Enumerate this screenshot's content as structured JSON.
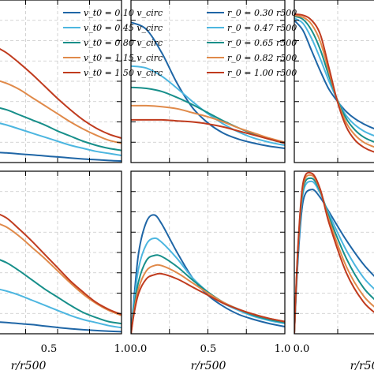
{
  "chart_data": {
    "type": "line",
    "xlabel": "r/r500",
    "xlim": [
      0.0,
      1.0
    ],
    "xticks": [
      "0.0",
      "0.5",
      "1.0"
    ],
    "grid": true,
    "legends": [
      {
        "placement": "top-right of left column",
        "entries": [
          {
            "label": "v_t0 = 0.10 v_circ",
            "color": "#1f66a6"
          },
          {
            "label": "v_t0 = 0.45 v_circ",
            "color": "#4cb6e0"
          },
          {
            "label": "v_t0 = 0.80 v_circ",
            "color": "#178f8a"
          },
          {
            "label": "v_t0 = 1.15 v_circ",
            "color": "#e08a4a"
          },
          {
            "label": "v_t0 = 1.50 v_circ",
            "color": "#c03b1e"
          }
        ]
      },
      {
        "placement": "top-right of middle column",
        "entries": [
          {
            "label": "r_0 = 0.30 r500",
            "color": "#1f66a6"
          },
          {
            "label": "r_0 = 0.47 r500",
            "color": "#4cb6e0"
          },
          {
            "label": "r_0 = 0.65 r500",
            "color": "#178f8a"
          },
          {
            "label": "r_0 = 0.82 r500",
            "color": "#e08a4a"
          },
          {
            "label": "r_0 = 1.00 r500",
            "color": "#c03b1e"
          }
        ]
      }
    ],
    "panels": [
      {
        "position": "top-left",
        "x": [
          0.0,
          0.1,
          0.2,
          0.3,
          0.4,
          0.5,
          0.6,
          0.7,
          0.8,
          0.9,
          1.0
        ],
        "series": [
          {
            "color": "#1f66a6",
            "values": [
              0.1,
              0.095,
              0.085,
              0.075,
              0.065,
              0.055,
              0.045,
              0.035,
              0.028,
              0.02,
              0.015
            ]
          },
          {
            "color": "#4cb6e0",
            "values": [
              0.4,
              0.37,
              0.33,
              0.29,
              0.25,
              0.21,
              0.17,
              0.14,
              0.11,
              0.09,
              0.07
            ]
          },
          {
            "color": "#178f8a",
            "values": [
              0.55,
              0.52,
              0.47,
              0.42,
              0.37,
              0.31,
              0.26,
              0.21,
              0.17,
              0.14,
              0.12
            ]
          },
          {
            "color": "#e08a4a",
            "values": [
              0.82,
              0.78,
              0.72,
              0.64,
              0.56,
              0.48,
              0.4,
              0.33,
              0.27,
              0.22,
              0.19
            ]
          },
          {
            "color": "#c03b1e",
            "values": [
              1.15,
              1.08,
              0.98,
              0.87,
              0.75,
              0.63,
              0.52,
              0.42,
              0.34,
              0.28,
              0.24
            ]
          }
        ]
      },
      {
        "position": "top-middle",
        "x": [
          0.0,
          0.1,
          0.2,
          0.3,
          0.4,
          0.5,
          0.6,
          0.7,
          0.8,
          0.9,
          1.0
        ],
        "series": [
          {
            "color": "#1f66a6",
            "values": [
              1.38,
              1.31,
              1.08,
              0.78,
              0.54,
              0.39,
              0.29,
              0.23,
              0.19,
              0.16,
              0.14
            ]
          },
          {
            "color": "#4cb6e0",
            "values": [
              0.95,
              0.93,
              0.85,
              0.73,
              0.6,
              0.48,
              0.38,
              0.3,
              0.24,
              0.2,
              0.17
            ]
          },
          {
            "color": "#178f8a",
            "values": [
              0.74,
              0.73,
              0.7,
              0.64,
              0.57,
              0.49,
              0.41,
              0.34,
              0.28,
              0.23,
              0.19
            ]
          },
          {
            "color": "#e08a4a",
            "values": [
              0.56,
              0.56,
              0.55,
              0.53,
              0.49,
              0.45,
              0.4,
              0.34,
              0.29,
              0.24,
              0.2
            ]
          },
          {
            "color": "#c03b1e",
            "values": [
              0.42,
              0.42,
              0.42,
              0.41,
              0.4,
              0.38,
              0.35,
              0.31,
              0.27,
              0.23,
              0.19
            ]
          }
        ]
      },
      {
        "position": "top-right",
        "x": [
          0.0,
          0.05,
          0.1,
          0.15,
          0.2,
          0.25,
          0.3,
          0.35,
          0.4,
          0.45,
          0.5
        ],
        "series": [
          {
            "color": "#1f66a6",
            "values": [
              1.4,
              1.3,
              1.1,
              0.9,
              0.72,
              0.6,
              0.5,
              0.43,
              0.38,
              0.34,
              0.31
            ]
          },
          {
            "color": "#4cb6e0",
            "values": [
              1.42,
              1.37,
              1.22,
              1.02,
              0.8,
              0.61,
              0.46,
              0.37,
              0.31,
              0.27,
              0.24
            ]
          },
          {
            "color": "#178f8a",
            "values": [
              1.44,
              1.41,
              1.3,
              1.11,
              0.85,
              0.61,
              0.43,
              0.32,
              0.25,
              0.21,
              0.18
            ]
          },
          {
            "color": "#e08a4a",
            "values": [
              1.45,
              1.43,
              1.36,
              1.19,
              0.89,
              0.6,
              0.39,
              0.27,
              0.2,
              0.16,
              0.13
            ]
          },
          {
            "color": "#c03b1e",
            "values": [
              1.46,
              1.45,
              1.4,
              1.26,
              0.93,
              0.59,
              0.35,
              0.22,
              0.15,
              0.11,
              0.09
            ]
          }
        ]
      },
      {
        "position": "bottom-left",
        "x": [
          0.0,
          0.1,
          0.2,
          0.3,
          0.4,
          0.5,
          0.6,
          0.7,
          0.8,
          0.9,
          1.0
        ],
        "series": [
          {
            "color": "#1f66a6",
            "values": [
              0.12,
              0.11,
              0.1,
              0.09,
              0.075,
              0.062,
              0.05,
              0.04,
              0.032,
              0.025,
              0.02
            ]
          },
          {
            "color": "#4cb6e0",
            "values": [
              0.45,
              0.42,
              0.38,
              0.33,
              0.28,
              0.23,
              0.18,
              0.14,
              0.11,
              0.08,
              0.06
            ]
          },
          {
            "color": "#178f8a",
            "values": [
              0.75,
              0.7,
              0.62,
              0.53,
              0.44,
              0.36,
              0.28,
              0.21,
              0.16,
              0.12,
              0.1
            ]
          },
          {
            "color": "#e08a4a",
            "values": [
              1.1,
              1.05,
              0.96,
              0.85,
              0.74,
              0.62,
              0.5,
              0.39,
              0.3,
              0.23,
              0.18
            ]
          },
          {
            "color": "#c03b1e",
            "values": [
              1.2,
              1.14,
              1.03,
              0.91,
              0.78,
              0.65,
              0.52,
              0.41,
              0.31,
              0.24,
              0.19
            ]
          }
        ]
      },
      {
        "position": "bottom-middle",
        "x": [
          0.0,
          0.02,
          0.05,
          0.1,
          0.15,
          0.2,
          0.3,
          0.4,
          0.5,
          0.6,
          0.7,
          0.8,
          0.9,
          1.0
        ],
        "series": [
          {
            "color": "#1f66a6",
            "values": [
              0.0,
              0.35,
              0.8,
              1.1,
              1.17,
              1.08,
              0.8,
              0.55,
              0.38,
              0.27,
              0.19,
              0.14,
              0.1,
              0.07
            ]
          },
          {
            "color": "#4cb6e0",
            "values": [
              0.0,
              0.3,
              0.65,
              0.88,
              0.94,
              0.9,
              0.74,
              0.55,
              0.41,
              0.3,
              0.23,
              0.17,
              0.13,
              0.1
            ]
          },
          {
            "color": "#178f8a",
            "values": [
              0.0,
              0.25,
              0.52,
              0.72,
              0.77,
              0.76,
              0.66,
              0.53,
              0.41,
              0.31,
              0.24,
              0.18,
              0.14,
              0.11
            ]
          },
          {
            "color": "#e08a4a",
            "values": [
              0.0,
              0.22,
              0.45,
              0.62,
              0.67,
              0.67,
              0.6,
              0.5,
              0.4,
              0.31,
              0.24,
              0.19,
              0.15,
              0.12
            ]
          },
          {
            "color": "#c03b1e",
            "values": [
              0.0,
              0.2,
              0.4,
              0.54,
              0.58,
              0.59,
              0.54,
              0.46,
              0.38,
              0.3,
              0.24,
              0.19,
              0.15,
              0.12
            ]
          }
        ]
      },
      {
        "position": "bottom-right",
        "x": [
          0.0,
          0.02,
          0.05,
          0.1,
          0.15,
          0.2,
          0.3,
          0.4,
          0.5
        ],
        "series": [
          {
            "color": "#1f66a6",
            "values": [
              0.0,
              0.7,
              1.3,
              1.42,
              1.34,
              1.2,
              0.92,
              0.68,
              0.5
            ]
          },
          {
            "color": "#4cb6e0",
            "values": [
              0.0,
              0.75,
              1.38,
              1.5,
              1.38,
              1.18,
              0.82,
              0.55,
              0.38
            ]
          },
          {
            "color": "#178f8a",
            "values": [
              0.0,
              0.78,
              1.42,
              1.53,
              1.4,
              1.15,
              0.74,
              0.45,
              0.28
            ]
          },
          {
            "color": "#e08a4a",
            "values": [
              0.0,
              0.8,
              1.45,
              1.56,
              1.41,
              1.12,
              0.66,
              0.37,
              0.21
            ]
          },
          {
            "color": "#c03b1e",
            "values": [
              0.0,
              0.82,
              1.48,
              1.58,
              1.42,
              1.09,
              0.6,
              0.31,
              0.16
            ]
          }
        ]
      }
    ]
  }
}
